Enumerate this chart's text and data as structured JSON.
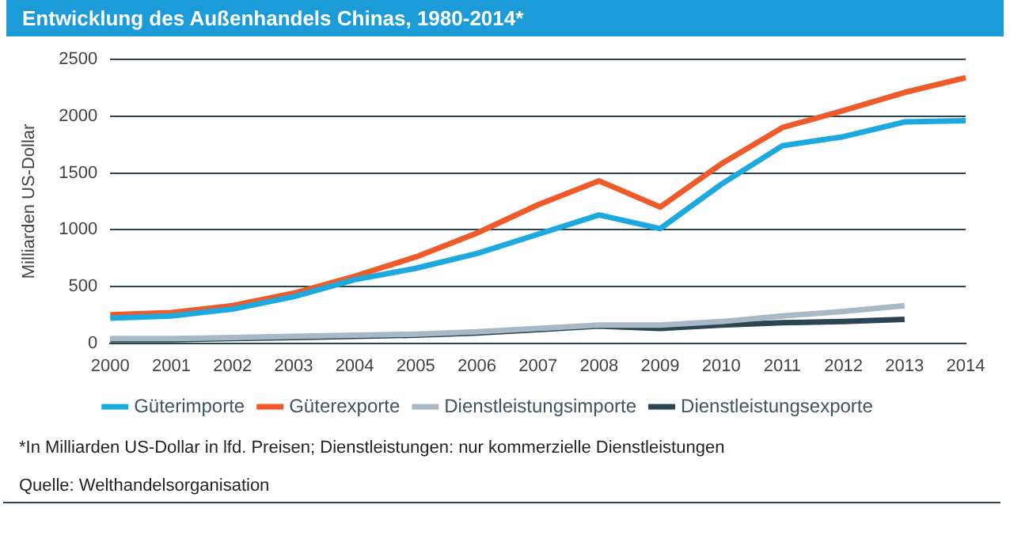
{
  "chart_data": {
    "type": "line",
    "title": "Entwicklung des Außenhandels Chinas, 1980-2014*",
    "ylabel": "Milliarden US-Dollar",
    "categories": [
      "2000",
      "2001",
      "2002",
      "2003",
      "2004",
      "2005",
      "2006",
      "2007",
      "2008",
      "2009",
      "2010",
      "2011",
      "2012",
      "2013",
      "2014"
    ],
    "series": [
      {
        "name": "Güterimporte",
        "color": "#1ba9e0",
        "values": [
          220,
          240,
          300,
          410,
          560,
          660,
          790,
          960,
          1130,
          1010,
          1400,
          1740,
          1820,
          1950,
          1960
        ]
      },
      {
        "name": "Güterexporte",
        "color": "#f05a28",
        "values": [
          250,
          270,
          330,
          440,
          590,
          760,
          970,
          1220,
          1430,
          1200,
          1580,
          1900,
          2050,
          2210,
          2340
        ]
      },
      {
        "name": "Dienstleistungsimporte",
        "color": "#a7b9c6",
        "values": [
          40,
          40,
          50,
          60,
          70,
          80,
          100,
          130,
          160,
          160,
          190,
          240,
          280,
          330,
          null
        ]
      },
      {
        "name": "Dienstleistungsexporte",
        "color": "#2b4552",
        "values": [
          30,
          30,
          40,
          50,
          60,
          70,
          90,
          120,
          150,
          130,
          160,
          180,
          190,
          210,
          null
        ]
      }
    ],
    "ylim": [
      0,
      2500
    ],
    "yticks": [
      0,
      500,
      1000,
      1500,
      2000,
      2500
    ],
    "grid": "y",
    "legend": "bottom",
    "marker": "none",
    "line_style": "solid",
    "annotations": [
      "*In Milliarden US-Dollar in lfd. Preisen; Dienstleistungen: nur kommerzielle Dienstleistungen",
      "Quelle: Welthandelsorganisation"
    ]
  }
}
